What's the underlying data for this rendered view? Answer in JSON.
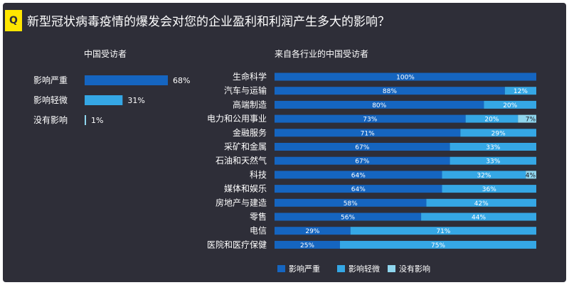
{
  "badge": "Q",
  "question": "新型冠状病毒疫情的爆发会对您的企业盈利和利润产生多大的影响？",
  "colors": {
    "background": "#2e2e38",
    "severe": "#1565c0",
    "mild": "#35a7e5",
    "none": "#8fd6ee",
    "badge": "#ffe600"
  },
  "chart_data": [
    {
      "type": "bar",
      "orientation": "horizontal",
      "title": "中国受访者",
      "categories": [
        "影响严重",
        "影响轻微",
        "没有影响"
      ],
      "values": [
        68,
        31,
        1
      ],
      "value_labels": [
        "68%",
        "31%",
        "1%"
      ],
      "colors": [
        "#1565c0",
        "#35a7e5",
        "#8fd6ee"
      ],
      "xlim": [
        0,
        100
      ]
    },
    {
      "type": "bar",
      "orientation": "horizontal",
      "stacked": true,
      "title": "来自各行业的中国受访者",
      "categories": [
        "生命科学",
        "汽车与运输",
        "高端制造",
        "电力和公用事业",
        "金融服务",
        "采矿和金属",
        "石油和天然气",
        "科技",
        "媒体和娱乐",
        "房地产与建造",
        "零售",
        "电信",
        "医院和医疗保健"
      ],
      "series": [
        {
          "name": "影响严重",
          "color": "#1565c0",
          "values": [
            100,
            88,
            80,
            73,
            71,
            67,
            67,
            64,
            64,
            58,
            56,
            29,
            25
          ]
        },
        {
          "name": "影响轻微",
          "color": "#35a7e5",
          "values": [
            0,
            12,
            20,
            20,
            29,
            33,
            33,
            32,
            36,
            42,
            44,
            71,
            75
          ]
        },
        {
          "name": "没有影响",
          "color": "#8fd6ee",
          "values": [
            0,
            0,
            0,
            7,
            0,
            0,
            0,
            4,
            0,
            0,
            0,
            0,
            0
          ]
        }
      ],
      "xlim": [
        0,
        100
      ],
      "legend_position": "bottom"
    }
  ]
}
